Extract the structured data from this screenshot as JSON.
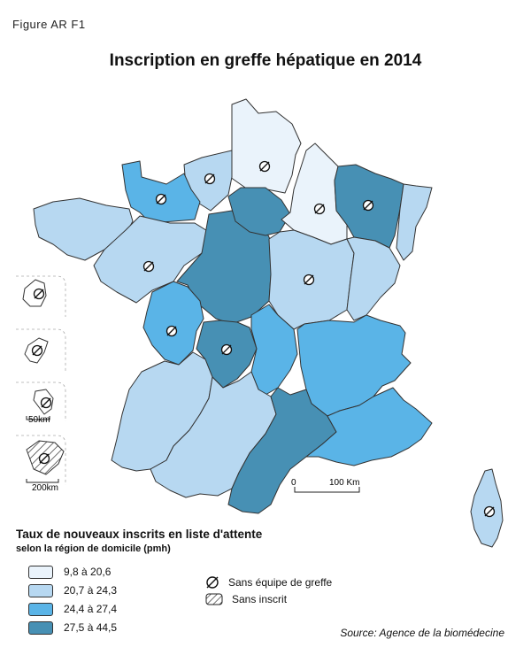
{
  "figure_label": "Figure AR F1",
  "title": "Inscription en greffe hépatique en 2014",
  "legend": {
    "title": "Taux de nouveaux inscrits en liste d'attente",
    "subtitle": "selon la région de domicile (pmh)",
    "classes": [
      {
        "label": "9,8 à 20,6",
        "color": "#eaf3fb"
      },
      {
        "label": "20,7 à 24,3",
        "color": "#b7d8f1"
      },
      {
        "label": "24,4 à 27,4",
        "color": "#5ab4e7"
      },
      {
        "label": "27,5 à 44,5",
        "color": "#4790b4"
      }
    ],
    "symbols": [
      {
        "label": "Sans équipe de greffe",
        "icon": "no-team-symbol-icon"
      },
      {
        "label": "Sans inscrit",
        "icon": "hatch-symbol-icon"
      }
    ]
  },
  "scale_bar": {
    "start": "0",
    "end": "100 Km"
  },
  "inset_scales": {
    "small": "50km",
    "large": "200km"
  },
  "source": "Source: Agence de la biomédecine"
}
